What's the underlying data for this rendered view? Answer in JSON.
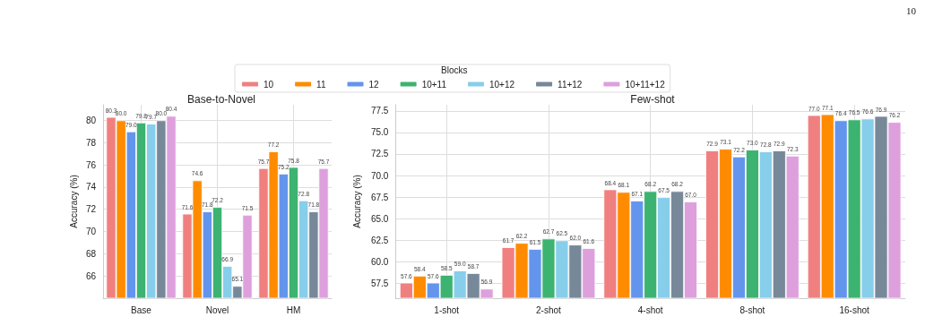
{
  "chart_data": [
    {
      "type": "bar",
      "title": "Base-to-Novel",
      "ylabel": "Accuracy (%)",
      "legend_title": "Blocks",
      "annotations": [
        "10"
      ],
      "categories": [
        "Base",
        "Novel",
        "HM"
      ],
      "series": [
        {
          "name": "10",
          "color": "#f08080",
          "values": [
            80.3,
            71.6,
            75.7
          ],
          "value_labels": [
            "80.3",
            "71.6",
            "75.7"
          ]
        },
        {
          "name": "11",
          "color": "#ff8c00",
          "values": [
            80.0,
            74.6,
            77.2
          ],
          "value_labels": [
            "80.0",
            "74.6",
            "77.2"
          ]
        },
        {
          "name": "12",
          "color": "#6495ed",
          "values": [
            79.0,
            71.8,
            75.2
          ],
          "value_labels": [
            "79.0",
            "71.8",
            "75.2"
          ]
        },
        {
          "name": "10+11",
          "color": "#3cb371",
          "values": [
            79.8,
            72.2,
            75.8
          ],
          "value_labels": [
            "79.8",
            "72.2",
            "75.8"
          ]
        },
        {
          "name": "10+12",
          "color": "#87ceeb",
          "values": [
            79.7,
            66.9,
            72.8
          ],
          "value_labels": [
            "79.7",
            "66.9",
            "72.8"
          ]
        },
        {
          "name": "11+12",
          "color": "#778899",
          "values": [
            80.0,
            65.1,
            71.8
          ],
          "value_labels": [
            "80.0",
            "65.1",
            "71.8"
          ]
        },
        {
          "name": "10+11+12",
          "color": "#dda0dd",
          "values": [
            80.4,
            71.5,
            75.7
          ],
          "value_labels": [
            "80.4",
            "71.5",
            "75.7"
          ]
        }
      ],
      "ylim": [
        64,
        81.4
      ],
      "yticks": [
        66,
        68,
        70,
        72,
        74,
        76,
        78,
        80
      ],
      "grid": true,
      "legend": "top"
    },
    {
      "type": "bar",
      "title": "Few-shot",
      "ylabel": "Accuracy (%)",
      "categories": [
        "1-shot",
        "2-shot",
        "4-shot",
        "8-shot",
        "16-shot"
      ],
      "series": [
        {
          "color": "#f08080",
          "values": [
            57.6,
            61.7,
            68.4,
            72.9,
            77.0
          ],
          "value_labels": [
            "57.6",
            "61.7",
            "68.4",
            "72.9",
            "77.0"
          ]
        },
        {
          "color": "#ff8c00",
          "values": [
            58.4,
            62.2,
            68.1,
            73.1,
            77.1
          ],
          "value_labels": [
            "58.4",
            "62.2",
            "68.1",
            "73.1",
            "77.1"
          ]
        },
        {
          "color": "#6495ed",
          "values": [
            57.6,
            61.5,
            67.1,
            72.2,
            76.4
          ],
          "value_labels": [
            "57.6",
            "61.5",
            "67.1",
            "72.2",
            "76.4"
          ]
        },
        {
          "color": "#3cb371",
          "values": [
            58.5,
            62.7,
            68.2,
            73.0,
            76.5
          ],
          "value_labels": [
            "58.5",
            "62.7",
            "68.2",
            "73.0",
            "76.5"
          ]
        },
        {
          "color": "#87ceeb",
          "values": [
            59.0,
            62.5,
            67.5,
            72.8,
            76.6
          ],
          "value_labels": [
            "59.0",
            "62.5",
            "67.5",
            "72.8",
            "76.6"
          ]
        },
        {
          "color": "#778899",
          "values": [
            58.7,
            62.0,
            68.2,
            72.9,
            76.9
          ],
          "value_labels": [
            "58.7",
            "62.0",
            "68.2",
            "72.9",
            "76.9"
          ]
        },
        {
          "color": "#dda0dd",
          "values": [
            56.9,
            61.6,
            67.0,
            72.3,
            76.2
          ],
          "value_labels": [
            "56.9",
            "61.6",
            "67.0",
            "72.3",
            "76.2"
          ]
        }
      ],
      "ylim": [
        55.8,
        78.2
      ],
      "yticks": [
        {
          "value": 57.5,
          "label": "57.5"
        },
        {
          "value": 60,
          "label": "60.0"
        },
        {
          "value": 62.5,
          "label": "62.5"
        },
        {
          "value": 65,
          "label": "65.0"
        },
        {
          "value": 67.5,
          "label": "67.5"
        },
        {
          "value": 70,
          "label": "70.0"
        },
        {
          "value": 72.5,
          "label": "72.5"
        },
        {
          "value": 75,
          "label": "75.0"
        },
        {
          "value": 77.5,
          "label": "77.5"
        }
      ],
      "grid": true
    }
  ]
}
